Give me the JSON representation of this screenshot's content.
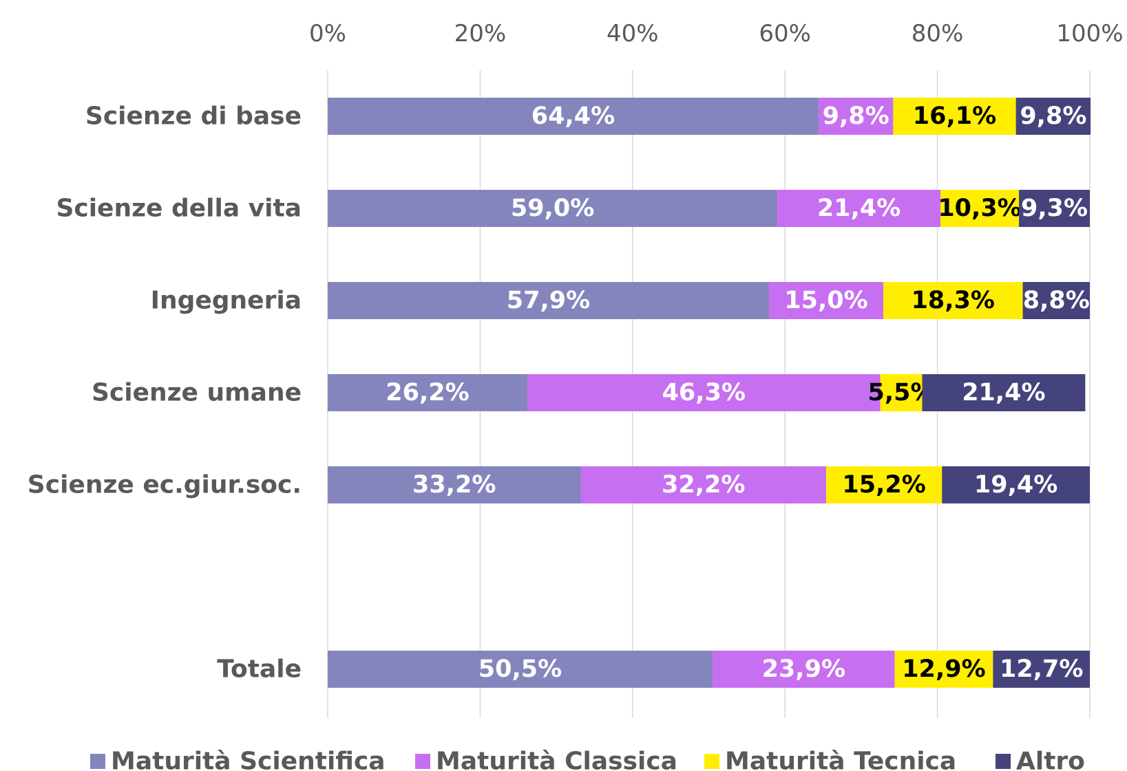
{
  "chart_data": {
    "type": "bar",
    "orientation": "horizontal",
    "stacked": true,
    "categories": [
      "Scienze di base",
      "Scienze della vita",
      "Ingegneria",
      "Scienze umane",
      "Scienze ec.giur.soc.",
      null,
      "Totale"
    ],
    "series": [
      {
        "name": "Maturità Scientifica",
        "color": "#8585bd",
        "label_color": "#ffffff",
        "values": [
          64.4,
          59.0,
          57.9,
          26.2,
          33.2,
          null,
          50.5
        ],
        "value_labels": [
          "64,4%",
          "59,0%",
          "57,9%",
          "26,2%",
          "33,2%",
          null,
          "50,5%"
        ]
      },
      {
        "name": "Maturità Classica",
        "color": "#c66ff0",
        "label_color": "#ffffff",
        "values": [
          9.8,
          21.4,
          15.0,
          46.3,
          32.2,
          null,
          23.9
        ],
        "value_labels": [
          "9,8%",
          "21,4%",
          "15,0%",
          "46,3%",
          "32,2%",
          null,
          "23,9%"
        ]
      },
      {
        "name": "Maturità Tecnica",
        "color": "#ffee00",
        "label_color": "#000000",
        "values": [
          16.1,
          10.3,
          18.3,
          5.5,
          15.2,
          null,
          12.9
        ],
        "value_labels": [
          "16,1%",
          "10,3%",
          "18,3%",
          "5,5%",
          "15,2%",
          null,
          "12,9%"
        ]
      },
      {
        "name": "Altro",
        "color": "#45437c",
        "label_color": "#ffffff",
        "values": [
          9.8,
          9.3,
          8.8,
          21.4,
          19.4,
          null,
          12.7
        ],
        "value_labels": [
          "9,8%",
          "9,3%",
          "8,8%",
          "21,4%",
          "19,4%",
          null,
          "12,7%"
        ]
      }
    ],
    "xlim": [
      0,
      100
    ],
    "xticks": [
      {
        "value": 0,
        "label": "0%"
      },
      {
        "value": 20,
        "label": "20%"
      },
      {
        "value": 40,
        "label": "40%"
      },
      {
        "value": 60,
        "label": "60%"
      },
      {
        "value": 80,
        "label": "80%"
      },
      {
        "value": 100,
        "label": "100%"
      }
    ],
    "grid": true,
    "legend": "bottom"
  }
}
